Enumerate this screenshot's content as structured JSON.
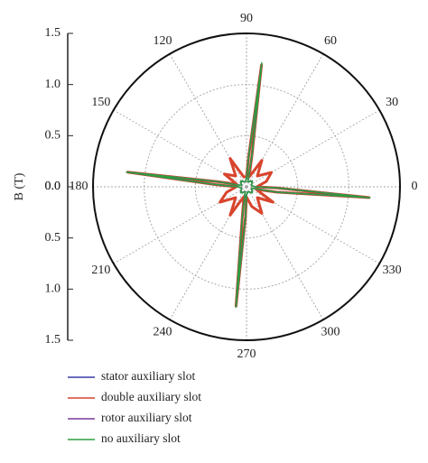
{
  "chart_data": {
    "type": "polar",
    "ylabel": "B (T)",
    "theta": [
      0,
      15,
      30,
      45,
      60,
      75,
      80,
      83,
      86,
      90,
      105,
      120,
      135,
      150,
      165,
      170,
      173,
      176,
      180,
      195,
      210,
      225,
      240,
      255,
      262,
      265,
      268,
      270,
      285,
      300,
      315,
      330,
      345,
      350,
      355,
      358
    ],
    "series": [
      {
        "name": "double auxiliary slot",
        "color": "#d8442c",
        "values": [
          0.1,
          0.2,
          0.28,
          0.15,
          0.3,
          0.1,
          0.3,
          1.2,
          0.3,
          0.1,
          0.1,
          0.32,
          0.15,
          0.25,
          0.1,
          0.3,
          1.17,
          0.3,
          0.1,
          0.2,
          0.3,
          0.15,
          0.32,
          0.1,
          0.3,
          1.17,
          0.3,
          0.1,
          0.2,
          0.3,
          0.15,
          0.3,
          0.1,
          0.3,
          1.2,
          0.3
        ]
      },
      {
        "name": "stator auxiliary slot",
        "color": "#3a3aa8",
        "values": [
          0.08,
          0.05,
          0.06,
          0.08,
          0.06,
          0.05,
          0.3,
          1.2,
          0.3,
          0.08,
          0.05,
          0.06,
          0.08,
          0.06,
          0.05,
          0.3,
          1.17,
          0.3,
          0.08,
          0.05,
          0.06,
          0.08,
          0.06,
          0.05,
          0.3,
          1.17,
          0.3,
          0.08,
          0.05,
          0.06,
          0.08,
          0.06,
          0.05,
          0.3,
          1.2,
          0.3
        ]
      },
      {
        "name": "rotor auxiliary slot",
        "color": "#7a3a9a",
        "values": [
          0.08,
          0.05,
          0.06,
          0.08,
          0.06,
          0.05,
          0.3,
          1.19,
          0.3,
          0.08,
          0.05,
          0.06,
          0.08,
          0.06,
          0.05,
          0.3,
          1.18,
          0.3,
          0.08,
          0.05,
          0.06,
          0.08,
          0.06,
          0.05,
          0.3,
          1.18,
          0.3,
          0.08,
          0.05,
          0.06,
          0.08,
          0.06,
          0.05,
          0.3,
          1.21,
          0.3
        ]
      },
      {
        "name": "no auxiliary slot",
        "color": "#2e9e3e",
        "values": [
          0.08,
          0.05,
          0.06,
          0.08,
          0.06,
          0.05,
          0.3,
          1.22,
          0.3,
          0.08,
          0.05,
          0.06,
          0.08,
          0.06,
          0.05,
          0.3,
          1.18,
          0.3,
          0.08,
          0.05,
          0.06,
          0.08,
          0.06,
          0.05,
          0.3,
          1.18,
          0.3,
          0.08,
          0.05,
          0.06,
          0.08,
          0.06,
          0.05,
          0.3,
          1.21,
          0.3
        ]
      }
    ],
    "legend_order": [
      1,
      0,
      2,
      3
    ],
    "rlim": [
      0,
      1.5
    ],
    "rticks": [
      {
        "value": 0,
        "label": "0.0"
      },
      {
        "value": 0.5,
        "label": "0.5"
      },
      {
        "value": 1,
        "label": "1.0"
      },
      {
        "value": 1.5,
        "label": "1.5"
      }
    ],
    "thetaticks": [
      0,
      30,
      60,
      90,
      120,
      150,
      180,
      210,
      240,
      270,
      300,
      330
    ],
    "grid": true
  }
}
